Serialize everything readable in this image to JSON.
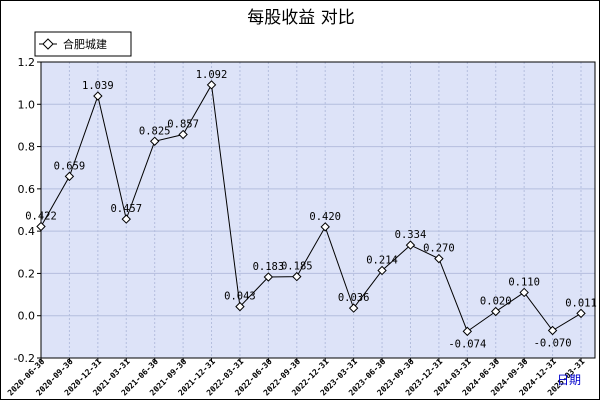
{
  "chart_data": {
    "type": "line",
    "title": "每股收益  对比",
    "xlabel": "日期",
    "ylabel": "",
    "ylim": [
      -0.2,
      1.2
    ],
    "yticks": [
      1.2,
      1.0,
      0.8,
      0.6,
      0.4,
      0.2,
      0.0,
      -0.2
    ],
    "grid": true,
    "legend_position": "top-left",
    "categories": [
      "2020-06-30",
      "2020-09-30",
      "2020-12-31",
      "2021-03-31",
      "2021-06-30",
      "2021-09-30",
      "2021-12-31",
      "2022-03-31",
      "2022-06-30",
      "2022-09-30",
      "2022-12-31",
      "2023-03-31",
      "2023-06-30",
      "2023-09-30",
      "2023-12-31",
      "2024-03-31",
      "2024-06-30",
      "2024-09-30",
      "2024-12-31",
      "2025-03-31"
    ],
    "series": [
      {
        "name": "合肥城建",
        "values": [
          0.422,
          0.659,
          1.039,
          0.457,
          0.825,
          0.857,
          1.092,
          0.043,
          0.183,
          0.185,
          0.42,
          0.036,
          0.214,
          0.334,
          0.27,
          -0.074,
          0.02,
          0.11,
          -0.07,
          0.011
        ],
        "labels": [
          "0.422",
          "0.659",
          "1.039",
          "0.457",
          "0.825",
          "0.857",
          "1.092",
          "0.043",
          "0.183",
          "0.185",
          "0.420",
          "0.036",
          "0.214",
          "0.334",
          "0.270",
          "-0.074",
          "0.020",
          "0.110",
          "-0.070",
          "0.011"
        ]
      }
    ],
    "colors": {
      "plot_background": "#dde3f8",
      "grid": "#b4bede",
      "line": "#000000",
      "marker_fill": "#ffffff",
      "xlabel_color": "#0000cc"
    }
  }
}
